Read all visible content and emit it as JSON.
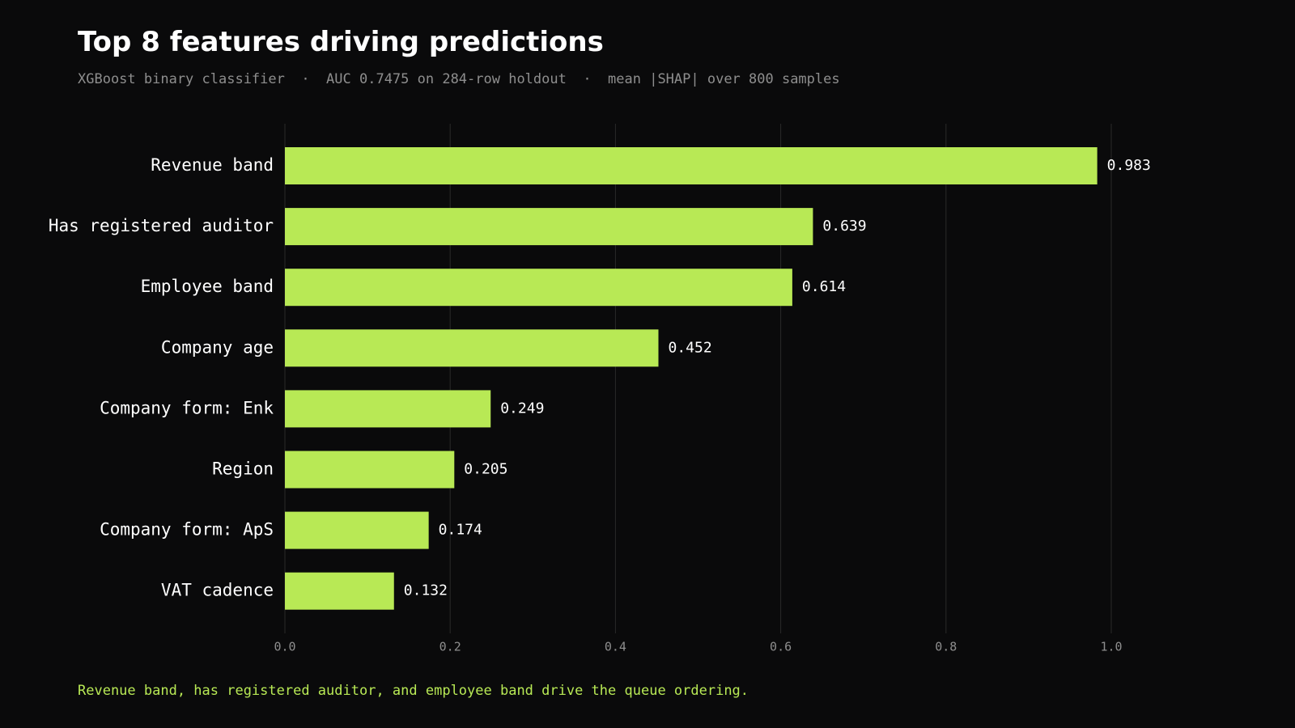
{
  "header": {
    "title": "Top 8 features driving predictions",
    "subtitle": "XGBoost binary classifier  ·  AUC 0.7475 on 284-row holdout  ·  mean |SHAP| over 800 samples"
  },
  "footer": {
    "note": "Revenue band, has registered auditor, and employee band drive the queue ordering."
  },
  "colors": {
    "background": "#0a0a0b",
    "bar": "#b8e955",
    "grid": "#2a2a2a",
    "label": "#ffffff",
    "tick": "#8e8e8e",
    "accent_text": "#b8e955"
  },
  "chart_data": {
    "type": "bar",
    "orientation": "horizontal",
    "categories": [
      "Revenue band",
      "Has registered auditor",
      "Employee band",
      "Company age",
      "Company form: Enk",
      "Region",
      "Company form: ApS",
      "VAT cadence"
    ],
    "values": [
      0.983,
      0.639,
      0.614,
      0.452,
      0.249,
      0.205,
      0.174,
      0.132
    ],
    "value_labels": [
      "0.983",
      "0.639",
      "0.614",
      "0.452",
      "0.249",
      "0.205",
      "0.174",
      "0.132"
    ],
    "xlim": [
      0,
      1.0
    ],
    "xticks": [
      0.0,
      0.2,
      0.4,
      0.6,
      0.8,
      1.0
    ],
    "xtick_labels": [
      "0.0",
      "0.2",
      "0.4",
      "0.6",
      "0.8",
      "1.0"
    ],
    "grid": "vertical",
    "legend": "none"
  }
}
